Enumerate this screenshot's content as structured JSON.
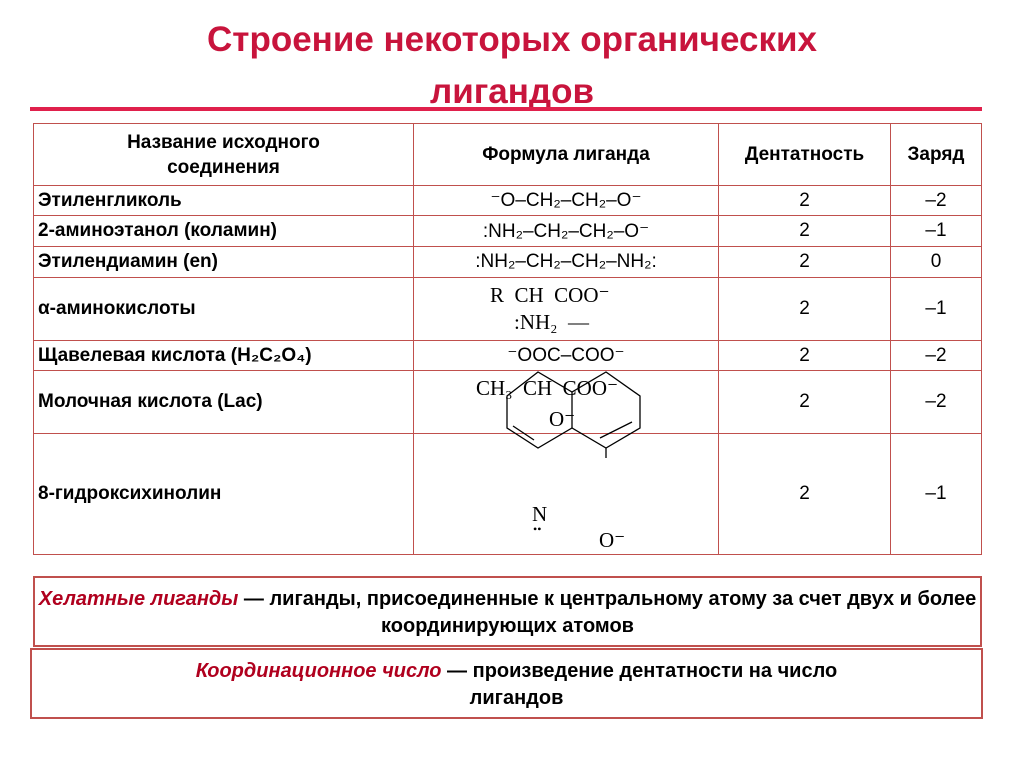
{
  "title": {
    "line1": "Строение некоторых органических",
    "line2": "лигандов"
  },
  "table": {
    "headers": [
      "Название исходного соединения",
      "Формула лиганда",
      "Дентатность",
      "Заряд"
    ],
    "rows": [
      {
        "name": "Этиленгликоль",
        "formula": "⁻O–CH₂–CH₂–O⁻",
        "dentate": "2",
        "charge": "–2"
      },
      {
        "name": "2-аминоэтанол (коламин)",
        "formula": ":NH₂–CH₂–CH₂–O⁻",
        "dentate": "2",
        "charge": "–1"
      },
      {
        "name": "Этилендиамин (en)",
        "formula": ":NH₂–CH₂–CH₂–NH₂:",
        "dentate": "2",
        "charge": "0"
      },
      {
        "name": "α-аминокислоты",
        "formula_l1": "R  CH  COO⁻",
        "formula_l2": ":NH₂  —",
        "dentate": "2",
        "charge": "–1"
      },
      {
        "name": "Щавелевая кислота (H₂C₂O₄)",
        "formula": "⁻OOC–COO⁻",
        "dentate": "2",
        "charge": "–2"
      },
      {
        "name": "Молочная кислота (Lac)",
        "formula_l1": "CH₃  CH  COO⁻",
        "formula_l2": "O⁻",
        "dentate": "2",
        "charge": "–2"
      },
      {
        "name": "8-гидроксихинолин",
        "formula_n": "N",
        "formula_dots": "••",
        "formula_o": "O⁻",
        "dentate": "2",
        "charge": "–1"
      }
    ]
  },
  "definitions": [
    {
      "term": "Хелатные лиганды",
      "text": " — лиганды, присоединенные к центральному атому за счет двух и более координирующих атомов"
    },
    {
      "term": "Координационное число",
      "text": " — произведение дентатности на число лигандов"
    }
  ],
  "colors": {
    "title": "#c8143c",
    "border": "#c0504d",
    "term": "#b0001e"
  }
}
